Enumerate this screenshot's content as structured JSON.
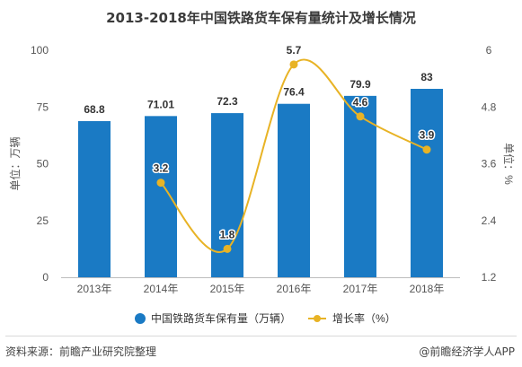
{
  "title": "2013-2018年中国铁路货车保有量统计及增长情况",
  "source": "资料来源：前瞻产业研究院整理",
  "credit": "@前瞻经济学人APP",
  "colors": {
    "bar": "#1a7ac4",
    "line": "#e8b325",
    "axis_text": "#555555"
  },
  "chart_data": {
    "type": "bar",
    "categories": [
      "2013年",
      "2014年",
      "2015年",
      "2016年",
      "2017年",
      "2018年"
    ],
    "series": [
      {
        "name": "中国铁路货车保有量（万辆）",
        "type": "bar",
        "axis": "left",
        "values": [
          68.8,
          71.01,
          72.3,
          76.4,
          79.9,
          83
        ],
        "labels": [
          "68.8",
          "71.01",
          "72.3",
          "76.4",
          "79.9",
          "83"
        ]
      },
      {
        "name": "增长率（%）",
        "type": "line",
        "axis": "right",
        "values": [
          null,
          3.2,
          1.8,
          5.7,
          4.6,
          3.9
        ],
        "labels": [
          "",
          "3.2",
          "1.8",
          "5.7",
          "4.6",
          "3.9"
        ]
      }
    ],
    "ylabel": "单位：万辆",
    "ylim": [
      0,
      100
    ],
    "yticks": [
      "0",
      "25",
      "50",
      "75",
      "100"
    ],
    "y2label": "单位：%",
    "y2lim": [
      1.2,
      6
    ],
    "y2ticks": [
      "1.2",
      "2.4",
      "3.6",
      "4.8",
      "6"
    ],
    "legend_position": "bottom",
    "grid": false
  }
}
